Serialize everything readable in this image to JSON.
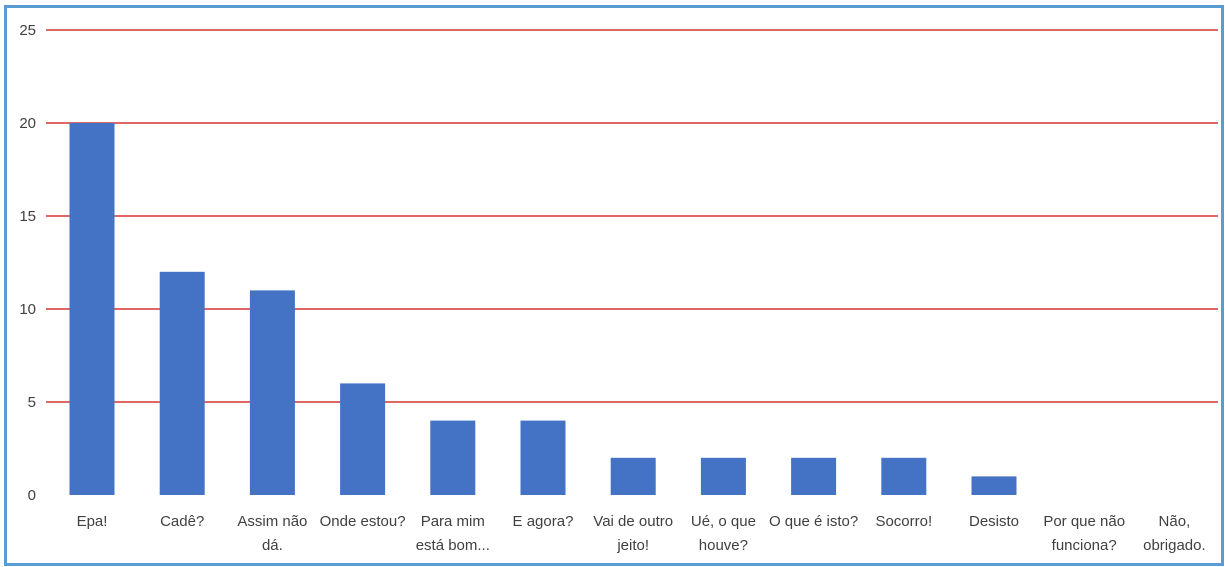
{
  "chart_data": {
    "type": "bar",
    "categories": [
      [
        "Epa!"
      ],
      [
        "Cadê?"
      ],
      [
        "Assim não",
        "dá."
      ],
      [
        "Onde estou?"
      ],
      [
        "Para mim",
        "está bom..."
      ],
      [
        "E agora?"
      ],
      [
        "Vai de outro",
        "jeito!"
      ],
      [
        "Ué, o que",
        "houve?"
      ],
      [
        "O que é isto?"
      ],
      [
        "Socorro!"
      ],
      [
        "Desisto"
      ],
      [
        "Por que não",
        "funciona?"
      ],
      [
        "Não,",
        "obrigado."
      ]
    ],
    "values": [
      20,
      12,
      11,
      6,
      4,
      4,
      2,
      2,
      2,
      2,
      1,
      0,
      0
    ],
    "ylim": [
      0,
      25
    ],
    "yticks": [
      "0",
      "5",
      "10",
      "15",
      "20",
      "25"
    ],
    "grid": true,
    "colors": {
      "bar": "#4472c4",
      "grid": "#e06666",
      "frame": "#5b9bd5"
    }
  }
}
